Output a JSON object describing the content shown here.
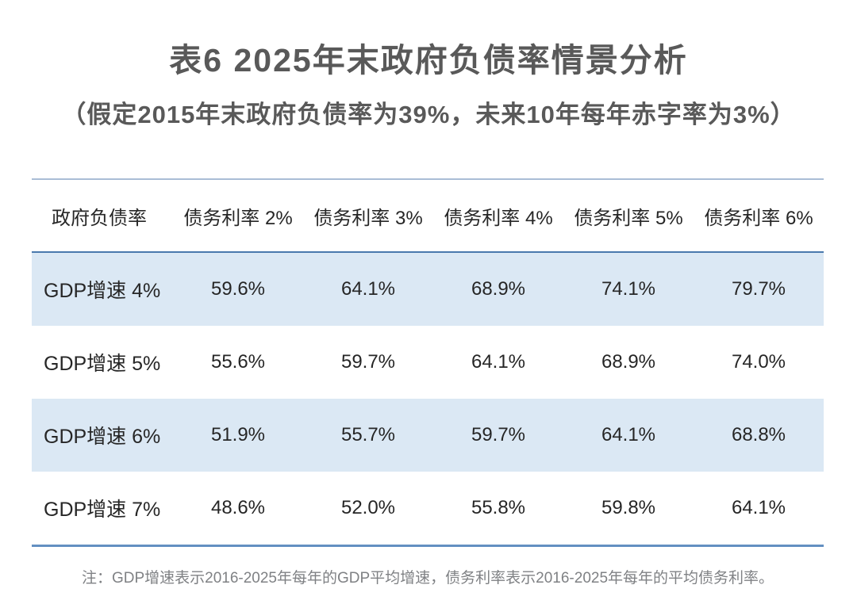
{
  "page": {
    "title": "表6 2025年末政府负债率情景分析",
    "subtitle": "（假定2015年末政府负债率为39%，未来10年每年赤字率为3%）",
    "note": "注：GDP增速表示2016-2025年每年的GDP平均增速，债务利率表示2016-2025年每年的平均债务利率。"
  },
  "table": {
    "columns": [
      "政府负债率",
      "债务利率 2%",
      "债务利率 3%",
      "债务利率 4%",
      "债务利率 5%",
      "债务利率 6%"
    ],
    "rows": [
      {
        "label": "GDP增速 4%",
        "values": [
          "59.6%",
          "64.1%",
          "68.9%",
          "74.1%",
          "79.7%"
        ]
      },
      {
        "label": "GDP增速 5%",
        "values": [
          "55.6%",
          "59.7%",
          "64.1%",
          "68.9%",
          "74.0%"
        ]
      },
      {
        "label": "GDP增速 6%",
        "values": [
          "51.9%",
          "55.7%",
          "59.7%",
          "64.1%",
          "68.8%"
        ]
      },
      {
        "label": "GDP增速 7%",
        "values": [
          "48.6%",
          "52.0%",
          "55.8%",
          "59.8%",
          "64.1%"
        ]
      }
    ]
  },
  "chart_data": {
    "type": "table",
    "title": "表6 2025年末政府负债率情景分析",
    "subtitle": "（假定2015年末政府负债率为39%，未来10年每年赤字率为3%）",
    "columns": [
      "政府负债率",
      "债务利率 2%",
      "债务利率 3%",
      "债务利率 4%",
      "债务利率 5%",
      "债务利率 6%"
    ],
    "rows": [
      [
        "GDP增速 4%",
        "59.6%",
        "64.1%",
        "68.9%",
        "74.1%",
        "79.7%"
      ],
      [
        "GDP增速 5%",
        "55.6%",
        "59.7%",
        "64.1%",
        "68.9%",
        "74.0%"
      ],
      [
        "GDP增速 6%",
        "51.9%",
        "55.7%",
        "59.7%",
        "64.1%",
        "68.8%"
      ],
      [
        "GDP增速 7%",
        "48.6%",
        "52.0%",
        "55.8%",
        "59.8%",
        "64.1%"
      ]
    ],
    "note": "注：GDP增速表示2016-2025年每年的GDP平均增速，债务利率表示2016-2025年每年的平均债务利率。",
    "layout": {
      "shaded_row_indices": [
        0,
        2
      ],
      "first_column_align": "left",
      "value_columns_align": "center"
    }
  },
  "colors": {
    "title_text": "#595959",
    "table_text": "#262626",
    "note_text": "#7f8184",
    "row_shaded_bg": "#dbe8f4",
    "top_border": "#a9bdd6",
    "header_border": "#4a79ad",
    "bottom_border": "#6390c1",
    "background": "#ffffff"
  }
}
